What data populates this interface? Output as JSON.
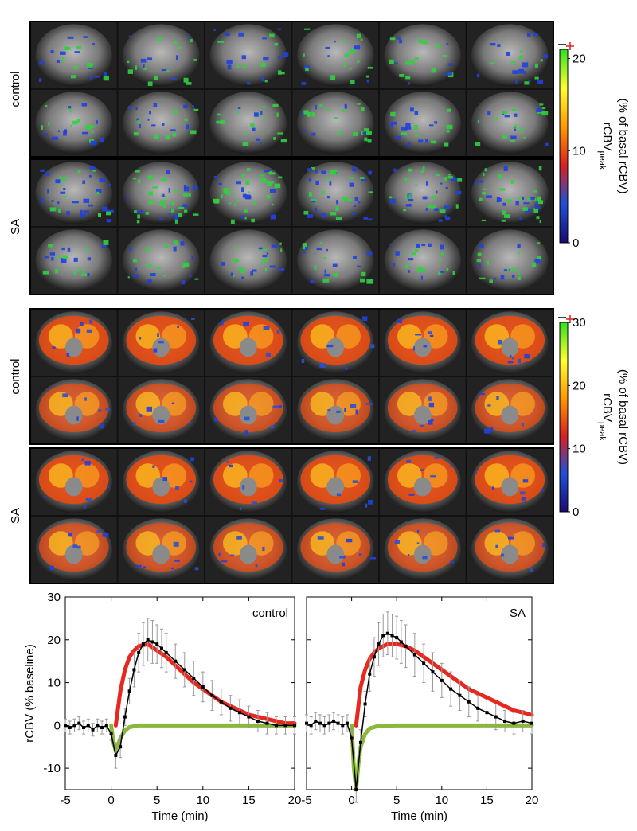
{
  "panels": [
    {
      "label": "control"
    },
    {
      "label": "SA"
    },
    {
      "label": "control"
    },
    {
      "label": "SA"
    }
  ],
  "colorbars": [
    {
      "label": "rCBV",
      "label_sub": "peak",
      "label2": "(% of basal rCBV)",
      "lim": [
        0,
        21
      ],
      "ticks": [
        0,
        10,
        20
      ],
      "colors": [
        "#1a0a6e",
        "#1e50d8",
        "#d82020",
        "#ff9a00",
        "#ffff30",
        "#30e020"
      ]
    },
    {
      "label": "rCBV",
      "label_sub": "peak",
      "label2": "(% of basal rCBV)",
      "lim": [
        0,
        30
      ],
      "ticks": [
        0,
        10,
        20,
        30
      ],
      "colors": [
        "#1a0a6e",
        "#1e50d8",
        "#d82020",
        "#ff9a00",
        "#ffff30",
        "#30e020"
      ]
    }
  ],
  "chart_data": [
    {
      "type": "line",
      "annotation": "control",
      "xlabel": "Time (min)",
      "ylabel": "rCBV (% baseline)",
      "xlim": [
        -5,
        20
      ],
      "ylim": [
        -15,
        30
      ],
      "xticks": [
        -5,
        0,
        5,
        10,
        15,
        20
      ],
      "yticks": [
        -10,
        0,
        10,
        20,
        30
      ],
      "series": [
        {
          "color": "#8cb83a",
          "x": [
            0,
            0.25,
            0.5,
            0.75,
            1,
            1.5,
            2,
            3,
            5,
            10,
            20
          ],
          "values": [
            0,
            -4,
            -6,
            -4.5,
            -3,
            -1.2,
            -0.4,
            0,
            0,
            0,
            0
          ]
        },
        {
          "color": "#e8281e",
          "x": [
            0.5,
            1,
            1.5,
            2,
            2.5,
            3,
            4,
            5,
            6,
            7,
            8,
            9,
            10,
            11,
            12,
            13,
            14,
            15,
            16,
            17,
            18,
            19,
            20
          ],
          "values": [
            0,
            8,
            13,
            16,
            17.5,
            18.5,
            19,
            17.5,
            16,
            14,
            12,
            10,
            8.5,
            7,
            5.5,
            4.5,
            3.5,
            2.5,
            2,
            1.5,
            1,
            0.5,
            0.5
          ]
        },
        {
          "color": "#000000",
          "x": [
            -5,
            -4.5,
            -4,
            -3.5,
            -3,
            -2.5,
            -2,
            -1.5,
            -1,
            -0.5,
            0,
            0.5,
            1,
            1.5,
            2,
            2.5,
            3,
            3.5,
            4,
            4.5,
            5,
            5.5,
            6,
            7,
            8,
            9,
            10,
            11,
            12,
            13,
            14,
            15,
            16,
            17,
            18,
            19,
            20
          ],
          "values": [
            0,
            -0.5,
            0,
            0.5,
            -0.5,
            0,
            -1,
            0,
            -0.5,
            0,
            -2,
            -7,
            -5,
            2,
            8,
            13,
            17,
            19,
            20,
            19.5,
            19,
            18,
            17,
            15,
            13,
            11,
            9,
            7,
            5.5,
            4,
            3,
            2,
            1,
            0.5,
            0,
            0,
            0
          ],
          "errors": [
            1.5,
            1.5,
            1.5,
            1.5,
            1.5,
            1.5,
            1.5,
            1.5,
            1.5,
            1.5,
            1.5,
            3,
            2.5,
            2,
            3,
            4,
            4.5,
            5,
            5,
            5,
            4.5,
            4.5,
            4.5,
            4,
            4,
            4,
            3.5,
            3.5,
            3,
            3,
            3,
            2.5,
            2.5,
            2.5,
            2,
            2,
            2
          ]
        }
      ]
    },
    {
      "type": "line",
      "annotation": "SA",
      "xlabel": "Time (min)",
      "xlim": [
        -5,
        20
      ],
      "ylim": [
        -15,
        30
      ],
      "xticks": [
        -5,
        0,
        5,
        10,
        15,
        20
      ],
      "yticks": [
        -10,
        0,
        10,
        20,
        30
      ],
      "series": [
        {
          "color": "#8cb83a",
          "x": [
            0,
            0.25,
            0.5,
            0.75,
            1,
            1.5,
            2,
            3,
            5,
            10,
            20
          ],
          "values": [
            0,
            -10,
            -15,
            -9,
            -5,
            -2,
            -0.7,
            -0.1,
            0,
            0,
            0
          ]
        },
        {
          "color": "#e8281e",
          "x": [
            0.5,
            1,
            1.5,
            2,
            2.5,
            3,
            4,
            5,
            6,
            7,
            8,
            9,
            10,
            11,
            12,
            13,
            14,
            15,
            16,
            17,
            18,
            19,
            20
          ],
          "values": [
            0,
            9,
            13,
            15.5,
            17,
            18,
            19,
            19,
            18.5,
            17.5,
            16,
            14.5,
            13,
            11.5,
            10,
            8.5,
            7.5,
            6.5,
            5.5,
            4.5,
            3.5,
            3,
            2.5
          ]
        },
        {
          "color": "#000000",
          "x": [
            -5,
            -4.5,
            -4,
            -3.5,
            -3,
            -2.5,
            -2,
            -1.5,
            -1,
            -0.5,
            0,
            0.5,
            1,
            1.5,
            2,
            2.5,
            3,
            3.5,
            4,
            4.5,
            5,
            5.5,
            6,
            7,
            8,
            9,
            10,
            11,
            12,
            13,
            14,
            15,
            16,
            17,
            18,
            19,
            20
          ],
          "values": [
            0.5,
            0,
            1,
            0.5,
            0,
            0.5,
            1,
            0.5,
            0,
            0.5,
            -3,
            -15,
            -4,
            5,
            12,
            16,
            19,
            21,
            21.5,
            21,
            20.5,
            19.5,
            18.5,
            16.5,
            14.5,
            12.5,
            10.5,
            8.5,
            7,
            5.5,
            4,
            3,
            2,
            1,
            0.5,
            1,
            0.5
          ],
          "errors": [
            2,
            2,
            2,
            2,
            2,
            2,
            2,
            2,
            2,
            2,
            2,
            3,
            3,
            3,
            4,
            4.5,
            5,
            5,
            5,
            5,
            5,
            5,
            5,
            5,
            4.5,
            4.5,
            4,
            4,
            3.5,
            3.5,
            3,
            3,
            3,
            2.5,
            2.5,
            2.5,
            2.5
          ]
        }
      ]
    }
  ]
}
